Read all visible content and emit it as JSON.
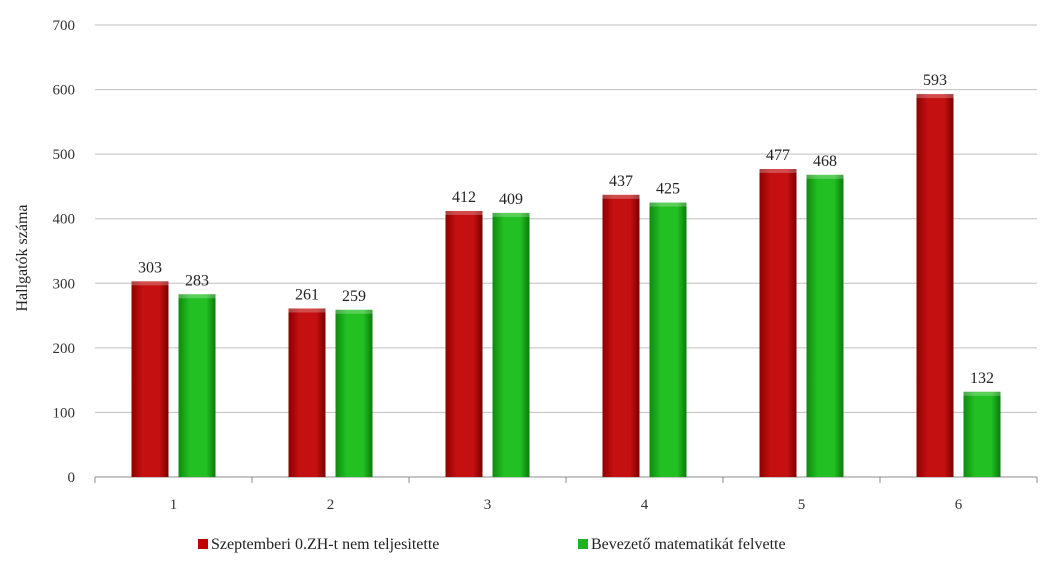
{
  "chart_data": {
    "type": "bar",
    "title": "",
    "xlabel": "",
    "ylabel": "Hallgatók száma",
    "ylim": [
      0,
      700
    ],
    "yticks": [
      0,
      100,
      200,
      300,
      400,
      500,
      600,
      700
    ],
    "categories": [
      "1",
      "2",
      "3",
      "4",
      "5",
      "6"
    ],
    "series": [
      {
        "name": "Szeptemberi 0.ZH-t nem teljesitette",
        "color": "#c00000",
        "values": [
          303,
          261,
          412,
          437,
          477,
          593
        ]
      },
      {
        "name": "Bevezető matematikát felvette",
        "color": "#1db31d",
        "values": [
          283,
          259,
          409,
          425,
          468,
          132
        ]
      }
    ],
    "grid": true,
    "legend_position": "bottom"
  }
}
